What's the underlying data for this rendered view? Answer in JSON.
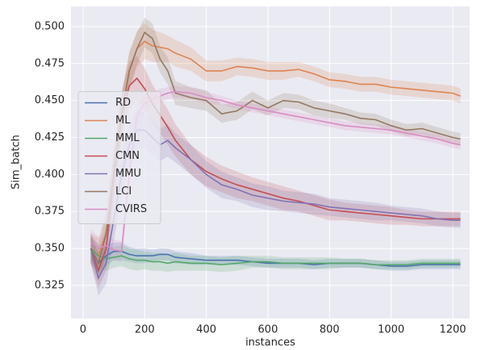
{
  "chart_data": {
    "type": "line",
    "xlabel": "instances",
    "ylabel": "Sim_batch",
    "x": [
      25,
      50,
      75,
      100,
      125,
      150,
      175,
      200,
      225,
      250,
      275,
      300,
      350,
      400,
      450,
      500,
      550,
      600,
      650,
      700,
      750,
      800,
      850,
      900,
      950,
      1000,
      1050,
      1100,
      1150,
      1200,
      1225
    ],
    "xlim": [
      -39,
      1255
    ],
    "xticks": [
      0,
      200,
      400,
      600,
      800,
      1000,
      1200
    ],
    "ylim": [
      0.3026,
      0.5136
    ],
    "yticks": [
      {
        "value": 0.325,
        "label": "0.325"
      },
      {
        "value": 0.35,
        "label": "0.350"
      },
      {
        "value": 0.375,
        "label": "0.375"
      },
      {
        "value": 0.4,
        "label": "0.400"
      },
      {
        "value": 0.425,
        "label": "0.425"
      },
      {
        "value": 0.45,
        "label": "0.450"
      },
      {
        "value": 0.475,
        "label": "0.475"
      },
      {
        "value": 0.5,
        "label": "0.500"
      }
    ],
    "grid": true,
    "legend": "center left",
    "series": [
      {
        "name": "RD",
        "color": "#4c72b0",
        "values": [
          0.35,
          0.34,
          0.345,
          0.348,
          0.348,
          0.346,
          0.345,
          0.345,
          0.345,
          0.346,
          0.346,
          0.344,
          0.343,
          0.342,
          0.342,
          0.342,
          0.341,
          0.34,
          0.34,
          0.34,
          0.339,
          0.34,
          0.34,
          0.34,
          0.339,
          0.338,
          0.338,
          0.339,
          0.339,
          0.339,
          0.339
        ],
        "err": [
          0.008,
          0.008,
          0.007,
          0.006,
          0.006,
          0.005,
          0.005,
          0.005,
          0.004,
          0.004,
          0.004,
          0.004,
          0.004,
          0.003,
          0.003,
          0.003,
          0.003,
          0.003,
          0.003,
          0.003,
          0.003,
          0.003,
          0.003,
          0.003,
          0.003,
          0.003,
          0.003,
          0.003,
          0.003,
          0.003,
          0.003
        ]
      },
      {
        "name": "ML",
        "color": "#dd8452",
        "values": [
          0.35,
          0.345,
          0.36,
          0.4,
          0.44,
          0.47,
          0.485,
          0.49,
          0.487,
          0.486,
          0.485,
          0.482,
          0.478,
          0.47,
          0.47,
          0.473,
          0.472,
          0.47,
          0.47,
          0.471,
          0.468,
          0.464,
          0.463,
          0.461,
          0.461,
          0.459,
          0.458,
          0.457,
          0.456,
          0.455,
          0.453
        ],
        "err": [
          0.01,
          0.012,
          0.015,
          0.015,
          0.014,
          0.013,
          0.012,
          0.012,
          0.011,
          0.01,
          0.009,
          0.009,
          0.008,
          0.007,
          0.007,
          0.006,
          0.006,
          0.006,
          0.006,
          0.005,
          0.005,
          0.005,
          0.005,
          0.005,
          0.005,
          0.005,
          0.005,
          0.005,
          0.005,
          0.005,
          0.005
        ]
      },
      {
        "name": "MML",
        "color": "#55a868",
        "values": [
          0.35,
          0.345,
          0.343,
          0.344,
          0.345,
          0.343,
          0.342,
          0.342,
          0.341,
          0.341,
          0.34,
          0.341,
          0.34,
          0.34,
          0.339,
          0.34,
          0.341,
          0.341,
          0.34,
          0.34,
          0.34,
          0.34,
          0.34,
          0.34,
          0.339,
          0.339,
          0.339,
          0.34,
          0.34,
          0.34,
          0.34
        ],
        "err": [
          0.008,
          0.008,
          0.008,
          0.007,
          0.007,
          0.007,
          0.007,
          0.006,
          0.006,
          0.006,
          0.006,
          0.006,
          0.005,
          0.005,
          0.005,
          0.005,
          0.004,
          0.004,
          0.004,
          0.004,
          0.004,
          0.004,
          0.003,
          0.003,
          0.003,
          0.003,
          0.003,
          0.003,
          0.003,
          0.003,
          0.003
        ]
      },
      {
        "name": "CMN",
        "color": "#c44e52",
        "values": [
          0.35,
          0.335,
          0.35,
          0.4,
          0.44,
          0.46,
          0.465,
          0.458,
          0.448,
          0.44,
          0.432,
          0.423,
          0.41,
          0.402,
          0.397,
          0.393,
          0.39,
          0.387,
          0.384,
          0.382,
          0.379,
          0.376,
          0.375,
          0.374,
          0.373,
          0.372,
          0.371,
          0.37,
          0.37,
          0.37,
          0.37
        ],
        "err": [
          0.01,
          0.012,
          0.015,
          0.016,
          0.016,
          0.016,
          0.015,
          0.014,
          0.013,
          0.012,
          0.012,
          0.011,
          0.01,
          0.01,
          0.009,
          0.009,
          0.008,
          0.008,
          0.008,
          0.007,
          0.007,
          0.007,
          0.006,
          0.006,
          0.006,
          0.006,
          0.005,
          0.005,
          0.005,
          0.005,
          0.005
        ]
      },
      {
        "name": "MMU",
        "color": "#8172b3",
        "values": [
          0.35,
          0.33,
          0.34,
          0.37,
          0.4,
          0.42,
          0.43,
          0.43,
          0.425,
          0.42,
          0.423,
          0.418,
          0.41,
          0.4,
          0.393,
          0.39,
          0.386,
          0.384,
          0.382,
          0.381,
          0.38,
          0.378,
          0.377,
          0.376,
          0.375,
          0.374,
          0.373,
          0.372,
          0.37,
          0.369,
          0.369
        ],
        "err": [
          0.01,
          0.012,
          0.014,
          0.015,
          0.015,
          0.014,
          0.013,
          0.012,
          0.012,
          0.011,
          0.011,
          0.01,
          0.01,
          0.009,
          0.009,
          0.008,
          0.008,
          0.008,
          0.007,
          0.007,
          0.007,
          0.006,
          0.006,
          0.006,
          0.006,
          0.005,
          0.005,
          0.005,
          0.005,
          0.005,
          0.005
        ]
      },
      {
        "name": "LCI",
        "color": "#937860",
        "values": [
          0.35,
          0.34,
          0.36,
          0.4,
          0.44,
          0.47,
          0.485,
          0.496,
          0.492,
          0.478,
          0.47,
          0.455,
          0.452,
          0.45,
          0.441,
          0.443,
          0.45,
          0.445,
          0.45,
          0.449,
          0.445,
          0.443,
          0.441,
          0.438,
          0.437,
          0.433,
          0.43,
          0.431,
          0.428,
          0.425,
          0.424
        ],
        "err": [
          0.01,
          0.012,
          0.014,
          0.014,
          0.013,
          0.012,
          0.011,
          0.01,
          0.01,
          0.009,
          0.009,
          0.008,
          0.007,
          0.007,
          0.006,
          0.006,
          0.006,
          0.005,
          0.005,
          0.005,
          0.005,
          0.005,
          0.004,
          0.004,
          0.004,
          0.004,
          0.004,
          0.004,
          0.004,
          0.004,
          0.004
        ]
      },
      {
        "name": "CVIRS",
        "color": "#da8bc3",
        "values": [
          0.355,
          0.35,
          0.352,
          0.349,
          0.348,
          0.4,
          0.44,
          0.448,
          0.451,
          0.453,
          0.455,
          0.456,
          0.455,
          0.452,
          0.45,
          0.447,
          0.445,
          0.443,
          0.441,
          0.439,
          0.437,
          0.435,
          0.433,
          0.432,
          0.431,
          0.43,
          0.428,
          0.426,
          0.424,
          0.421,
          0.42
        ],
        "err": [
          0.008,
          0.008,
          0.007,
          0.007,
          0.007,
          0.01,
          0.008,
          0.006,
          0.005,
          0.005,
          0.004,
          0.004,
          0.004,
          0.004,
          0.003,
          0.003,
          0.003,
          0.003,
          0.003,
          0.003,
          0.003,
          0.003,
          0.003,
          0.003,
          0.003,
          0.003,
          0.003,
          0.003,
          0.003,
          0.003,
          0.003
        ]
      }
    ]
  }
}
